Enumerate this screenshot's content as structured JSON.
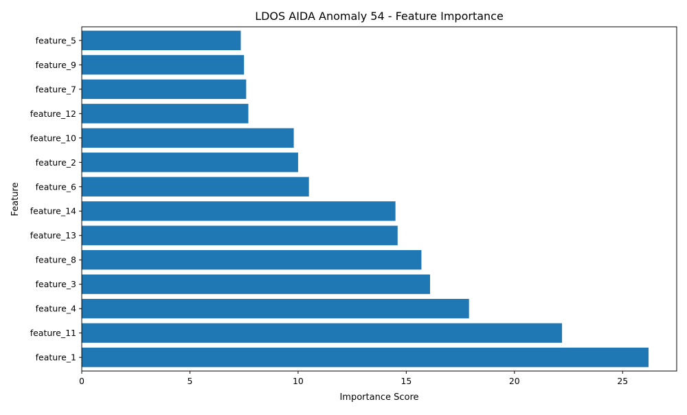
{
  "chart_data": {
    "type": "bar",
    "orientation": "horizontal",
    "title": "LDOS AIDA Anomaly 54 - Feature Importance",
    "xlabel": "Importance Score",
    "ylabel": "Feature",
    "xlim": [
      0,
      27.5
    ],
    "xticks": [
      0,
      5,
      10,
      15,
      20,
      25
    ],
    "grid": false,
    "legend": "none",
    "bar_color": "#1f77b4",
    "categories": [
      "feature_1",
      "feature_11",
      "feature_4",
      "feature_3",
      "feature_8",
      "feature_13",
      "feature_14",
      "feature_6",
      "feature_2",
      "feature_10",
      "feature_12",
      "feature_7",
      "feature_9",
      "feature_5"
    ],
    "values": [
      26.2,
      22.2,
      17.9,
      16.1,
      15.7,
      14.6,
      14.5,
      10.5,
      10.0,
      9.8,
      7.7,
      7.6,
      7.5,
      7.35
    ]
  }
}
